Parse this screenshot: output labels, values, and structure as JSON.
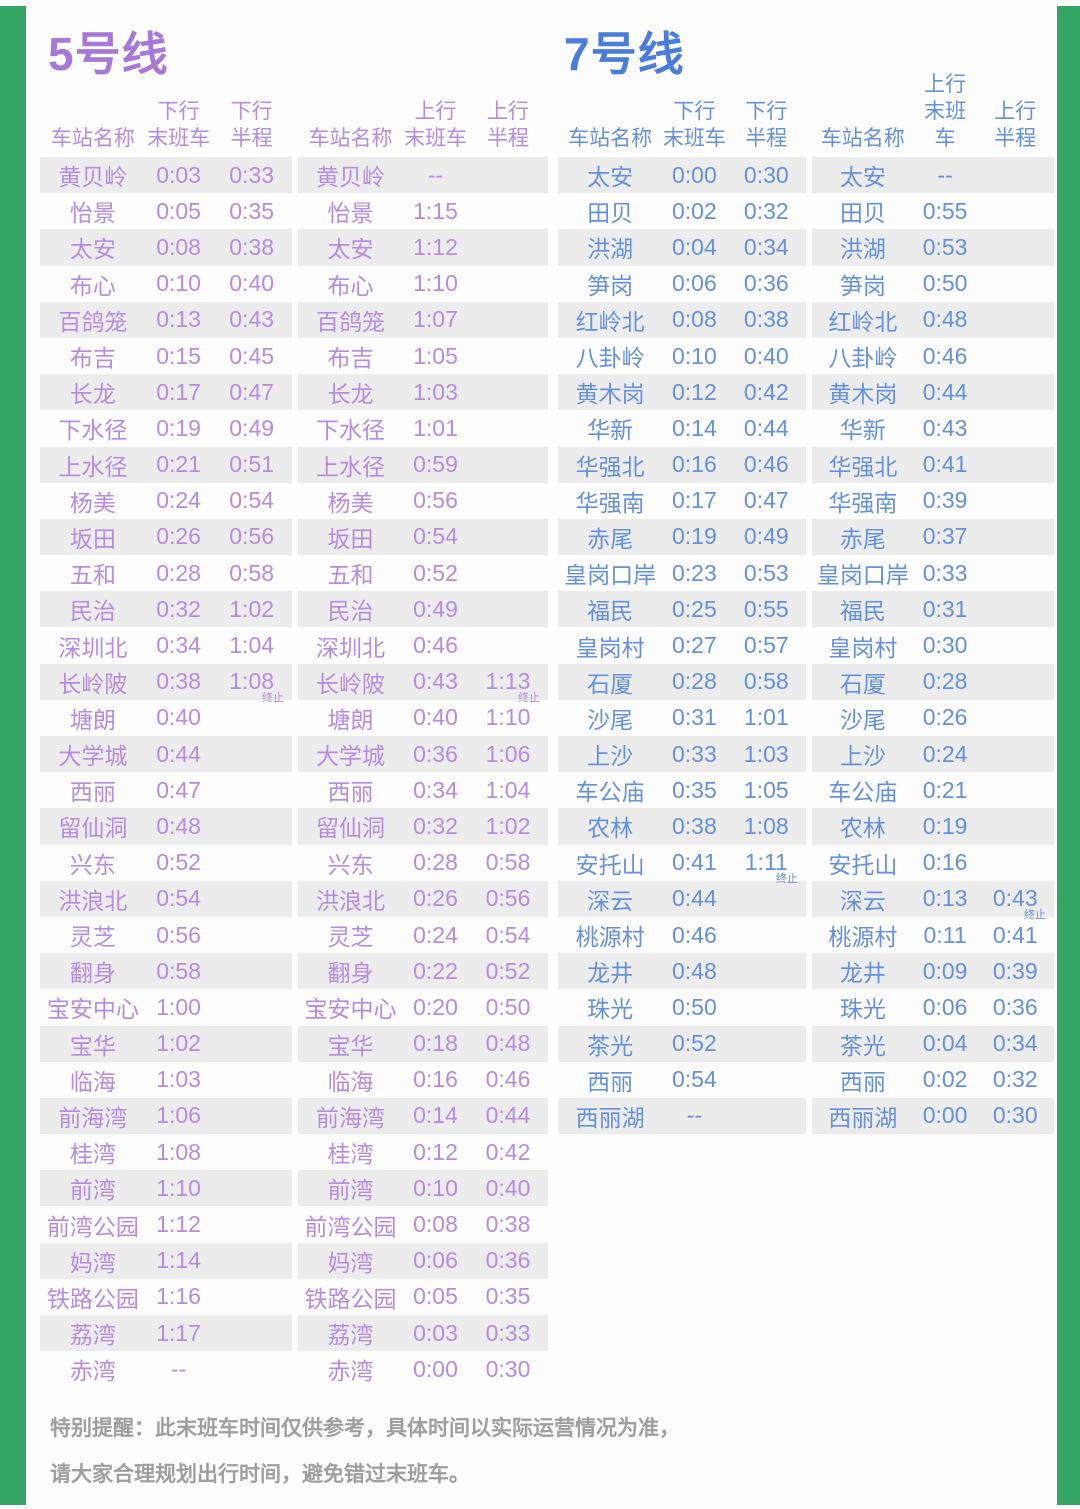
{
  "colors": {
    "border_green": "#35a564",
    "line5_title": "#a678d8",
    "line5_text": "#b58ce2",
    "line7_title": "#4a7cdb",
    "line7_text": "#6590dd",
    "row_stripe": "#ececec",
    "footer_text": "#9e9e9e"
  },
  "footer": {
    "line1": "特别提醒：此末班车时间仅供参考，具体时间以实际运营情况为准，",
    "line2": "请大家合理规划出行时间，避免错过末班车。"
  },
  "lines": [
    {
      "title": "5号线",
      "tables": [
        {
          "header": {
            "station": "车站名称",
            "direction": "下行",
            "last_label": "末班车",
            "half_label": "半程"
          },
          "rows": [
            [
              "黄贝岭",
              "0:03",
              "0:33"
            ],
            [
              "怡景",
              "0:05",
              "0:35"
            ],
            [
              "太安",
              "0:08",
              "0:38"
            ],
            [
              "布心",
              "0:10",
              "0:40"
            ],
            [
              "百鸽笼",
              "0:13",
              "0:43"
            ],
            [
              "布吉",
              "0:15",
              "0:45"
            ],
            [
              "长龙",
              "0:17",
              "0:47"
            ],
            [
              "下水径",
              "0:19",
              "0:49"
            ],
            [
              "上水径",
              "0:21",
              "0:51"
            ],
            [
              "杨美",
              "0:24",
              "0:54"
            ],
            [
              "坂田",
              "0:26",
              "0:56"
            ],
            [
              "五和",
              "0:28",
              "0:58"
            ],
            [
              "民治",
              "0:32",
              "1:02"
            ],
            [
              "深圳北",
              "0:34",
              "1:04"
            ],
            [
              "长岭陂",
              "0:38",
              "1:08",
              "终止"
            ],
            [
              "塘朗",
              "0:40",
              ""
            ],
            [
              "大学城",
              "0:44",
              ""
            ],
            [
              "西丽",
              "0:47",
              ""
            ],
            [
              "留仙洞",
              "0:48",
              ""
            ],
            [
              "兴东",
              "0:52",
              ""
            ],
            [
              "洪浪北",
              "0:54",
              ""
            ],
            [
              "灵芝",
              "0:56",
              ""
            ],
            [
              "翻身",
              "0:58",
              ""
            ],
            [
              "宝安中心",
              "1:00",
              ""
            ],
            [
              "宝华",
              "1:02",
              ""
            ],
            [
              "临海",
              "1:03",
              ""
            ],
            [
              "前海湾",
              "1:06",
              ""
            ],
            [
              "桂湾",
              "1:08",
              ""
            ],
            [
              "前湾",
              "1:10",
              ""
            ],
            [
              "前湾公园",
              "1:12",
              ""
            ],
            [
              "妈湾",
              "1:14",
              ""
            ],
            [
              "铁路公园",
              "1:16",
              ""
            ],
            [
              "荔湾",
              "1:17",
              ""
            ],
            [
              "赤湾",
              "--",
              ""
            ]
          ]
        },
        {
          "header": {
            "station": "车站名称",
            "direction": "上行",
            "last_label": "末班车",
            "half_label": "半程"
          },
          "rows": [
            [
              "黄贝岭",
              "--",
              ""
            ],
            [
              "怡景",
              "1:15",
              ""
            ],
            [
              "太安",
              "1:12",
              ""
            ],
            [
              "布心",
              "1:10",
              ""
            ],
            [
              "百鸽笼",
              "1:07",
              ""
            ],
            [
              "布吉",
              "1:05",
              ""
            ],
            [
              "长龙",
              "1:03",
              ""
            ],
            [
              "下水径",
              "1:01",
              ""
            ],
            [
              "上水径",
              "0:59",
              ""
            ],
            [
              "杨美",
              "0:56",
              ""
            ],
            [
              "坂田",
              "0:54",
              ""
            ],
            [
              "五和",
              "0:52",
              ""
            ],
            [
              "民治",
              "0:49",
              ""
            ],
            [
              "深圳北",
              "0:46",
              ""
            ],
            [
              "长岭陂",
              "0:43",
              "1:13",
              "终止"
            ],
            [
              "塘朗",
              "0:40",
              "1:10"
            ],
            [
              "大学城",
              "0:36",
              "1:06"
            ],
            [
              "西丽",
              "0:34",
              "1:04"
            ],
            [
              "留仙洞",
              "0:32",
              "1:02"
            ],
            [
              "兴东",
              "0:28",
              "0:58"
            ],
            [
              "洪浪北",
              "0:26",
              "0:56"
            ],
            [
              "灵芝",
              "0:24",
              "0:54"
            ],
            [
              "翻身",
              "0:22",
              "0:52"
            ],
            [
              "宝安中心",
              "0:20",
              "0:50"
            ],
            [
              "宝华",
              "0:18",
              "0:48"
            ],
            [
              "临海",
              "0:16",
              "0:46"
            ],
            [
              "前海湾",
              "0:14",
              "0:44"
            ],
            [
              "桂湾",
              "0:12",
              "0:42"
            ],
            [
              "前湾",
              "0:10",
              "0:40"
            ],
            [
              "前湾公园",
              "0:08",
              "0:38"
            ],
            [
              "妈湾",
              "0:06",
              "0:36"
            ],
            [
              "铁路公园",
              "0:05",
              "0:35"
            ],
            [
              "荔湾",
              "0:03",
              "0:33"
            ],
            [
              "赤湾",
              "0:00",
              "0:30"
            ]
          ]
        }
      ]
    },
    {
      "title": "7号线",
      "tables": [
        {
          "header": {
            "station": "车站名称",
            "direction": "下行",
            "last_label": "末班车",
            "half_label": "半程"
          },
          "rows": [
            [
              "太安",
              "0:00",
              "0:30"
            ],
            [
              "田贝",
              "0:02",
              "0:32"
            ],
            [
              "洪湖",
              "0:04",
              "0:34"
            ],
            [
              "笋岗",
              "0:06",
              "0:36"
            ],
            [
              "红岭北",
              "0:08",
              "0:38"
            ],
            [
              "八卦岭",
              "0:10",
              "0:40"
            ],
            [
              "黄木岗",
              "0:12",
              "0:42"
            ],
            [
              "华新",
              "0:14",
              "0:44"
            ],
            [
              "华强北",
              "0:16",
              "0:46"
            ],
            [
              "华强南",
              "0:17",
              "0:47"
            ],
            [
              "赤尾",
              "0:19",
              "0:49"
            ],
            [
              "皇岗口岸",
              "0:23",
              "0:53"
            ],
            [
              "福民",
              "0:25",
              "0:55"
            ],
            [
              "皇岗村",
              "0:27",
              "0:57"
            ],
            [
              "石厦",
              "0:28",
              "0:58"
            ],
            [
              "沙尾",
              "0:31",
              "1:01"
            ],
            [
              "上沙",
              "0:33",
              "1:03"
            ],
            [
              "车公庙",
              "0:35",
              "1:05"
            ],
            [
              "农林",
              "0:38",
              "1:08"
            ],
            [
              "安托山",
              "0:41",
              "1:11",
              "终止"
            ],
            [
              "深云",
              "0:44",
              ""
            ],
            [
              "桃源村",
              "0:46",
              ""
            ],
            [
              "龙井",
              "0:48",
              ""
            ],
            [
              "珠光",
              "0:50",
              ""
            ],
            [
              "茶光",
              "0:52",
              ""
            ],
            [
              "西丽",
              "0:54",
              ""
            ],
            [
              "西丽湖",
              "--",
              ""
            ]
          ]
        },
        {
          "header": {
            "station": "车站名称",
            "direction": "上行",
            "last_label": "末班车",
            "half_label": "半程"
          },
          "rows": [
            [
              "太安",
              "--",
              ""
            ],
            [
              "田贝",
              "0:55",
              ""
            ],
            [
              "洪湖",
              "0:53",
              ""
            ],
            [
              "笋岗",
              "0:50",
              ""
            ],
            [
              "红岭北",
              "0:48",
              ""
            ],
            [
              "八卦岭",
              "0:46",
              ""
            ],
            [
              "黄木岗",
              "0:44",
              ""
            ],
            [
              "华新",
              "0:43",
              ""
            ],
            [
              "华强北",
              "0:41",
              ""
            ],
            [
              "华强南",
              "0:39",
              ""
            ],
            [
              "赤尾",
              "0:37",
              ""
            ],
            [
              "皇岗口岸",
              "0:33",
              ""
            ],
            [
              "福民",
              "0:31",
              ""
            ],
            [
              "皇岗村",
              "0:30",
              ""
            ],
            [
              "石厦",
              "0:28",
              ""
            ],
            [
              "沙尾",
              "0:26",
              ""
            ],
            [
              "上沙",
              "0:24",
              ""
            ],
            [
              "车公庙",
              "0:21",
              ""
            ],
            [
              "农林",
              "0:19",
              ""
            ],
            [
              "安托山",
              "0:16",
              ""
            ],
            [
              "深云",
              "0:13",
              "0:43",
              "终止"
            ],
            [
              "桃源村",
              "0:11",
              "0:41"
            ],
            [
              "龙井",
              "0:09",
              "0:39"
            ],
            [
              "珠光",
              "0:06",
              "0:36"
            ],
            [
              "茶光",
              "0:04",
              "0:34"
            ],
            [
              "西丽",
              "0:02",
              "0:32"
            ],
            [
              "西丽湖",
              "0:00",
              "0:30"
            ]
          ]
        }
      ]
    }
  ]
}
